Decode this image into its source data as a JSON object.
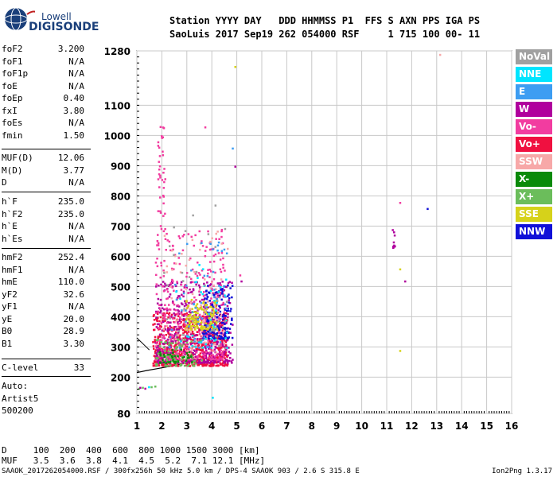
{
  "logo": {
    "line1": "Lowell",
    "line2": "DIGISONDE"
  },
  "header": {
    "line1": "Station YYYY DAY   DDD HHMMSS P1  FFS S AXN PPS IGA PS",
    "line2": "SaoLuis 2017 Sep19 262 054000 RSF     1 715 100 00- 11"
  },
  "params_block1": [
    {
      "label": "foF2",
      "value": "3.200"
    },
    {
      "label": "foF1",
      "value": "N/A"
    },
    {
      "label": "foF1p",
      "value": "N/A"
    },
    {
      "label": "foE",
      "value": "N/A"
    },
    {
      "label": "foEp",
      "value": "0.40"
    },
    {
      "label": "fxI",
      "value": "3.80"
    },
    {
      "label": "foEs",
      "value": "N/A"
    },
    {
      "label": "fmin",
      "value": "1.50"
    }
  ],
  "params_block2": [
    {
      "label": "MUF(D)",
      "value": "12.06"
    },
    {
      "label": "M(D)",
      "value": "3.77"
    },
    {
      "label": "D",
      "value": "N/A"
    }
  ],
  "params_block3": [
    {
      "label": "h`F",
      "value": "235.0"
    },
    {
      "label": "h`F2",
      "value": "235.0"
    },
    {
      "label": "h`E",
      "value": "N/A"
    },
    {
      "label": "h`Es",
      "value": "N/A"
    }
  ],
  "params_block4": [
    {
      "label": "hmF2",
      "value": "252.4"
    },
    {
      "label": "hmF1",
      "value": "N/A"
    },
    {
      "label": "hmE",
      "value": "110.0"
    },
    {
      "label": "yF2",
      "value": "32.6"
    },
    {
      "label": "yF1",
      "value": "N/A"
    },
    {
      "label": "yE",
      "value": "20.0"
    },
    {
      "label": "B0",
      "value": "28.9"
    },
    {
      "label": "B1",
      "value": "3.30"
    }
  ],
  "clevel": {
    "label": "C-level",
    "value": "33"
  },
  "auto": [
    "Auto:",
    "Artist5",
    "500200"
  ],
  "legend": [
    {
      "name": "NoVal",
      "color": "#a0a0a0"
    },
    {
      "name": "NNE",
      "color": "#00e5ff"
    },
    {
      "name": "E",
      "color": "#3d9df2"
    },
    {
      "name": "W",
      "color": "#b0009d"
    },
    {
      "name": "Vo-",
      "color": "#f23ca0"
    },
    {
      "name": "Vo+",
      "color": "#f01040"
    },
    {
      "name": "SSW",
      "color": "#f7a8a8"
    },
    {
      "name": "X-",
      "color": "#0a8a0a"
    },
    {
      "name": "X+",
      "color": "#6bbd5b"
    },
    {
      "name": "SSE",
      "color": "#d6d21a"
    },
    {
      "name": "NNW",
      "color": "#1010d8"
    }
  ],
  "bottom": {
    "d_line": "D     100  200  400  600  800 1000 1500 3000 [km]",
    "muf_line": "MUF   3.5  3.6  3.8  4.1  4.5  5.2  7.1 12.1 [MHz]"
  },
  "footer": {
    "left": "SAAOK_2017262054000.RSF / 300fx256h 50 kHz 5.0 km / DPS-4 SAAOK 903 / 2.6 S 315.8 E",
    "right": "Ion2Png 1.3.17"
  },
  "chart_data": {
    "type": "scatter",
    "title": "",
    "xlabel": "",
    "ylabel": "",
    "xlim": [
      1,
      16
    ],
    "ylim": [
      80,
      1280
    ],
    "x_ticks": [
      1,
      2,
      3,
      4,
      5,
      6,
      7,
      8,
      9,
      10,
      11,
      12,
      13,
      14,
      15,
      16
    ],
    "y_ticks": [
      80,
      200,
      300,
      400,
      500,
      600,
      700,
      800,
      900,
      1000,
      1100,
      1280
    ],
    "grid": true,
    "legend_position": "right",
    "trace": {
      "name": "",
      "x": [
        1.0,
        1.4,
        1.8,
        2.2,
        2.6,
        2.9,
        3.1
      ],
      "y": [
        215,
        222,
        228,
        234,
        240,
        247,
        252
      ]
    },
    "clusters": [
      {
        "name": "Vo+",
        "x_range": [
          1.6,
          4.6
        ],
        "y_range": [
          240,
          420
        ],
        "count": 700
      },
      {
        "name": "W",
        "x_range": [
          1.7,
          4.8
        ],
        "y_range": [
          250,
          520
        ],
        "count": 450
      },
      {
        "name": "Vo-",
        "x_range": [
          1.7,
          4.5
        ],
        "y_range": [
          260,
          700
        ],
        "count": 380
      },
      {
        "name": "NNW",
        "x_range": [
          3.6,
          4.8
        ],
        "y_range": [
          330,
          510
        ],
        "count": 160
      },
      {
        "name": "SSE",
        "x_range": [
          2.9,
          4.2
        ],
        "y_range": [
          360,
          460
        ],
        "count": 140
      },
      {
        "name": "X+",
        "x_range": [
          1.7,
          3.6
        ],
        "y_range": [
          240,
          330
        ],
        "count": 90
      },
      {
        "name": "X-",
        "x_range": [
          1.8,
          3.2
        ],
        "y_range": [
          250,
          300
        ],
        "count": 40
      },
      {
        "name": "SSW",
        "x_range": [
          2.0,
          4.6
        ],
        "y_range": [
          280,
          700
        ],
        "count": 80
      },
      {
        "name": "E",
        "x_range": [
          2.2,
          4.6
        ],
        "y_range": [
          300,
          650
        ],
        "count": 60
      },
      {
        "name": "NNE",
        "x_range": [
          2.5,
          4.6
        ],
        "y_range": [
          300,
          600
        ],
        "count": 40
      },
      {
        "name": "NoVal",
        "x_range": [
          2.0,
          4.6
        ],
        "y_range": [
          300,
          780
        ],
        "count": 40
      },
      {
        "name": "Vo-",
        "x_range": [
          1.8,
          2.1
        ],
        "y_range": [
          700,
          1040
        ],
        "count": 30
      },
      {
        "name": "Vo-",
        "x_range": [
          1.8,
          2.1
        ],
        "y_range": [
          840,
          900
        ],
        "count": 6
      },
      {
        "name": "W",
        "x_range": [
          11.2,
          11.3
        ],
        "y_range": [
          630,
          690
        ],
        "count": 10
      }
    ],
    "isolated": [
      {
        "name": "X+",
        "x": 1.05,
        "y": 165
      },
      {
        "name": "X+",
        "x": 1.2,
        "y": 168
      },
      {
        "name": "X+",
        "x": 1.55,
        "y": 170
      },
      {
        "name": "X+",
        "x": 1.7,
        "y": 172
      },
      {
        "name": "W",
        "x": 1.1,
        "y": 168
      },
      {
        "name": "W",
        "x": 1.3,
        "y": 165
      },
      {
        "name": "NNE",
        "x": 1.45,
        "y": 170
      },
      {
        "name": "NNE",
        "x": 4.0,
        "y": 135
      },
      {
        "name": "Vo-",
        "x": 5.1,
        "y": 540
      },
      {
        "name": "W",
        "x": 5.15,
        "y": 520
      },
      {
        "name": "W",
        "x": 4.9,
        "y": 900
      },
      {
        "name": "E",
        "x": 4.8,
        "y": 960
      },
      {
        "name": "SSE",
        "x": 11.5,
        "y": 560
      },
      {
        "name": "SSE",
        "x": 11.5,
        "y": 290
      },
      {
        "name": "Vo-",
        "x": 11.5,
        "y": 780
      },
      {
        "name": "NNW",
        "x": 12.6,
        "y": 760
      },
      {
        "name": "SSE",
        "x": 4.9,
        "y": 1230
      },
      {
        "name": "SSW",
        "x": 13.1,
        "y": 1270
      },
      {
        "name": "Vo-",
        "x": 3.7,
        "y": 1030
      },
      {
        "name": "W",
        "x": 11.7,
        "y": 520
      }
    ]
  }
}
